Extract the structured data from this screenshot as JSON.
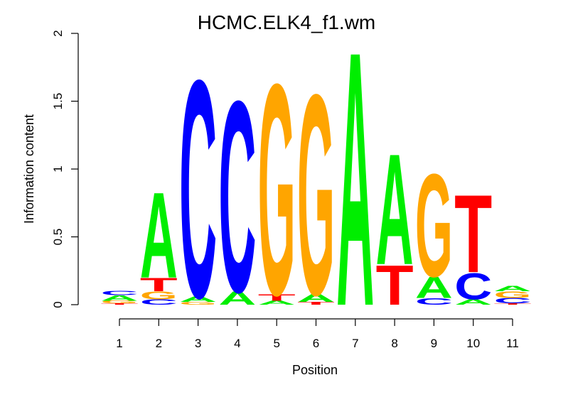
{
  "chart_data": {
    "type": "sequence-logo",
    "title": "HCMC.ELK4_f1.wm",
    "xlabel": "Position",
    "ylabel": "Information content",
    "ylim": [
      0,
      2
    ],
    "y_ticks": [
      "0",
      "0.5",
      "1",
      "1.5",
      "2"
    ],
    "x_ticks": [
      "1",
      "2",
      "3",
      "4",
      "5",
      "6",
      "7",
      "8",
      "9",
      "10",
      "11"
    ],
    "colors": {
      "A": "#00ee00",
      "C": "#0000ff",
      "G": "#ffa500",
      "T": "#ff0000"
    },
    "positions": [
      {
        "pos": "1",
        "letters": [
          {
            "base": "T",
            "height": 0.01
          },
          {
            "base": "G",
            "height": 0.02
          },
          {
            "base": "A",
            "height": 0.04
          },
          {
            "base": "C",
            "height": 0.03
          }
        ]
      },
      {
        "pos": "2",
        "letters": [
          {
            "base": "C",
            "height": 0.04
          },
          {
            "base": "G",
            "height": 0.06
          },
          {
            "base": "T",
            "height": 0.1
          },
          {
            "base": "A",
            "height": 0.65
          }
        ]
      },
      {
        "pos": "3",
        "letters": [
          {
            "base": "G",
            "height": 0.02
          },
          {
            "base": "A",
            "height": 0.04
          },
          {
            "base": "C",
            "height": 1.65
          }
        ]
      },
      {
        "pos": "4",
        "letters": [
          {
            "base": "A",
            "height": 0.1
          },
          {
            "base": "C",
            "height": 1.45
          }
        ]
      },
      {
        "pos": "5",
        "letters": [
          {
            "base": "A",
            "height": 0.03
          },
          {
            "base": "T",
            "height": 0.05
          },
          {
            "base": "G",
            "height": 1.6
          }
        ]
      },
      {
        "pos": "6",
        "letters": [
          {
            "base": "T",
            "height": 0.02
          },
          {
            "base": "A",
            "height": 0.06
          },
          {
            "base": "G",
            "height": 1.52
          }
        ]
      },
      {
        "pos": "7",
        "letters": [
          {
            "base": "A",
            "height": 1.93
          }
        ]
      },
      {
        "pos": "8",
        "letters": [
          {
            "base": "T",
            "height": 0.3
          },
          {
            "base": "A",
            "height": 0.84
          }
        ]
      },
      {
        "pos": "9",
        "letters": [
          {
            "base": "C",
            "height": 0.05
          },
          {
            "base": "A",
            "height": 0.16
          },
          {
            "base": "G",
            "height": 0.78
          }
        ]
      },
      {
        "pos": "10",
        "letters": [
          {
            "base": "A",
            "height": 0.04
          },
          {
            "base": "C",
            "height": 0.2
          },
          {
            "base": "T",
            "height": 0.59
          }
        ]
      },
      {
        "pos": "11",
        "letters": [
          {
            "base": "T",
            "height": 0.01
          },
          {
            "base": "C",
            "height": 0.04
          },
          {
            "base": "G",
            "height": 0.05
          },
          {
            "base": "A",
            "height": 0.04
          }
        ]
      }
    ]
  }
}
